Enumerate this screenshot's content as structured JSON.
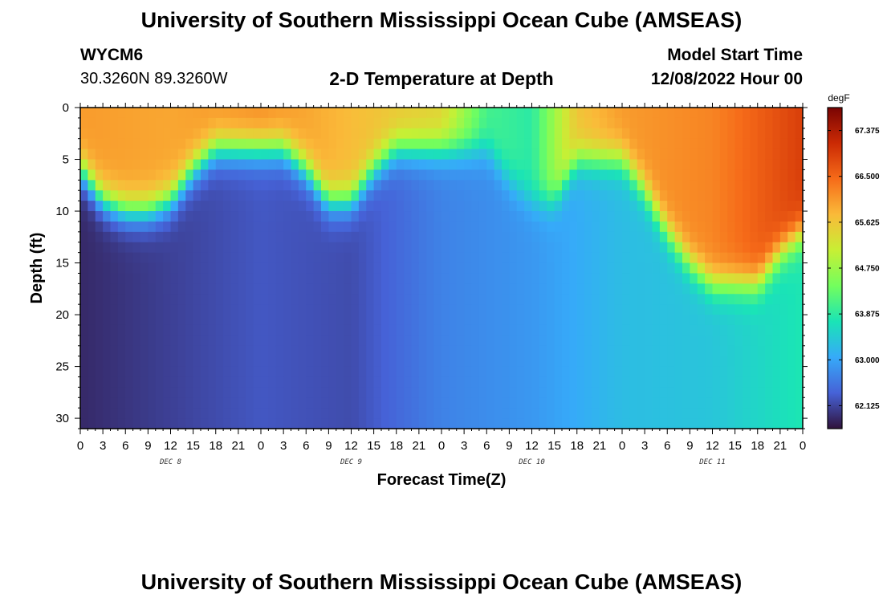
{
  "header": {
    "title": "University of Southern Mississippi Ocean Cube (AMSEAS)",
    "station_id": "WYCM6",
    "station_coords": "30.3260N  89.3260W",
    "plot_title": "2-D Temperature at Depth",
    "model_start_label": "Model Start Time",
    "model_start_value": "12/08/2022 Hour 00"
  },
  "footer": {
    "title": "University of Southern Mississippi Ocean Cube (AMSEAS)"
  },
  "chart_data": {
    "type": "heatmap",
    "xlabel": "Forecast Time(Z)",
    "ylabel": "Depth (ft)",
    "x_tick_labels": [
      "0",
      "3",
      "6",
      "9",
      "12",
      "15",
      "18",
      "21",
      "0",
      "3",
      "6",
      "9",
      "12",
      "15",
      "18",
      "21",
      "0",
      "3",
      "6",
      "9",
      "12",
      "15",
      "18",
      "21",
      "0",
      "3",
      "6",
      "9",
      "12",
      "15",
      "18",
      "21",
      "0"
    ],
    "day_labels": [
      {
        "label": "DEC 8",
        "hour": 12
      },
      {
        "label": "DEC 9",
        "hour": 36
      },
      {
        "label": "DEC 10",
        "hour": 60
      },
      {
        "label": "DEC 11",
        "hour": 84
      }
    ],
    "xlim": [
      0,
      96
    ],
    "ylim": [
      0,
      31
    ],
    "y_ticks": [
      0,
      5,
      10,
      15,
      20,
      25,
      30
    ],
    "colorbar": {
      "unit": "degF",
      "min": 61.9,
      "max": 68.1,
      "labels": [
        "67.375",
        "66.500",
        "65.625",
        "64.750",
        "63.875",
        "63.000",
        "62.125"
      ],
      "colors": [
        "#30123b",
        "#4662d7",
        "#36aaf9",
        "#1ae4b6",
        "#72fe5e",
        "#c8ef34",
        "#faba39",
        "#f66b19",
        "#cb2a04",
        "#7a0403"
      ]
    },
    "surface_warm_layer_bottom_ft": {
      "hours": [
        0,
        3,
        6,
        9,
        12,
        15,
        18,
        21,
        24,
        27,
        30,
        33,
        36,
        39,
        42,
        45,
        48,
        51,
        54,
        57,
        60,
        63,
        66,
        69,
        72,
        75,
        78,
        81,
        84,
        87,
        90,
        93,
        96
      ],
      "depth": [
        6,
        9,
        10,
        10,
        9,
        6,
        4,
        4,
        4,
        4,
        6,
        9,
        9,
        6,
        4,
        4,
        4,
        4,
        4,
        7,
        9,
        9,
        5,
        5,
        5,
        8,
        12,
        15,
        17,
        17,
        17,
        14,
        12
      ]
    },
    "deep_temperature_degF": {
      "hours": [
        0,
        12,
        24,
        36,
        48,
        60,
        72,
        84,
        96
      ],
      "values": [
        62.1,
        62.3,
        62.5,
        62.4,
        62.9,
        63.1,
        63.5,
        63.6,
        64.0
      ]
    },
    "surface_temperature_degF": {
      "hours": [
        0,
        12,
        24,
        36,
        48,
        54,
        60,
        66,
        72,
        84,
        96
      ],
      "values": [
        66.3,
        66.2,
        66.4,
        66.0,
        65.7,
        64.3,
        64.1,
        65.9,
        66.3,
        66.5,
        67.2
      ]
    }
  }
}
